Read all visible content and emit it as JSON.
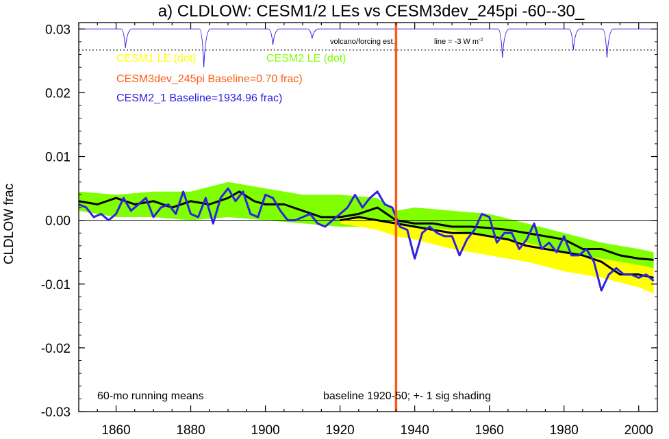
{
  "chart_data": {
    "type": "line",
    "title": "a) CLDLOW: CESM1/2 LEs vs CESM3dev_245pi -60--30_",
    "ylabel": "CLDLOW frac",
    "xlim": [
      1850,
      2005
    ],
    "ylim": [
      -0.03,
      0.031
    ],
    "x_ticks": [
      1860,
      1880,
      1900,
      1920,
      1940,
      1960,
      1980,
      2000
    ],
    "y_ticks": [
      {
        "value": 0.03,
        "label": "0.03"
      },
      {
        "value": 0.02,
        "label": "0.02"
      },
      {
        "value": 0.01,
        "label": "0.01"
      },
      {
        "value": 0.0,
        "label": "0.00"
      },
      {
        "value": -0.01,
        "label": "-0.01"
      },
      {
        "value": -0.02,
        "label": "-0.02"
      },
      {
        "value": -0.03,
        "label": "-0.03"
      }
    ],
    "legend": [
      {
        "text": "CESM1 LE (dot)",
        "color": "#ffff00"
      },
      {
        "text": "CESM2 LE (dot)",
        "color": "#7fff00"
      },
      {
        "text": "CESM3dev_245pi Baseline=0.70 frac)",
        "color": "#ff5a14"
      },
      {
        "text": "CESM2_1 Baseline=1934.96 frac)",
        "color": "#3020e0"
      }
    ],
    "annotations": {
      "volcano": "volcano/forcing est.",
      "line_note": "line = -3 W m",
      "line_note_sup": "-2",
      "running_mean": "60-mo running means",
      "baseline": "baseline 1920-50; +- 1 sig shading"
    },
    "colors": {
      "cesm1_band": "#ffff00",
      "cesm2_band": "#7fff00",
      "ensemble_mean": "#000000",
      "cesm2_1": "#3020e0",
      "cesm3dev": "#ff5a14",
      "volcano": "#3020e0"
    },
    "cesm3dev_line_year": 1935,
    "volcano_reference_line": 0.0267,
    "volcano_dips": [
      {
        "year": 1862.5,
        "depth": 0.003
      },
      {
        "year": 1883.5,
        "depth": 0.006
      },
      {
        "year": 1902,
        "depth": 0.0025
      },
      {
        "year": 1912.5,
        "depth": 0.0015
      },
      {
        "year": 1963.5,
        "depth": 0.0045
      },
      {
        "year": 1982.5,
        "depth": 0.0033
      },
      {
        "year": 1991.5,
        "depth": 0.0045
      }
    ],
    "series": [
      {
        "name": "CESM2 LE (dot)",
        "kind": "band",
        "x": [
          1850,
          1860,
          1870,
          1880,
          1890,
          1900,
          1910,
          1920,
          1930,
          1935,
          1940,
          1950,
          1960,
          1970,
          1980,
          1990,
          2000,
          2004
        ],
        "upper": [
          0.0045,
          0.004,
          0.0045,
          0.0045,
          0.006,
          0.005,
          0.004,
          0.004,
          0.0035,
          0.0015,
          0.002,
          0.0015,
          0.001,
          -0.0005,
          -0.002,
          -0.0035,
          -0.0045,
          -0.005
        ],
        "lower": [
          0.0015,
          0.0005,
          0.0005,
          0.0,
          0.0005,
          0.0,
          -0.0005,
          -0.001,
          -0.001,
          -0.0025,
          -0.002,
          -0.002,
          -0.003,
          -0.0045,
          -0.0055,
          -0.0065,
          -0.0075,
          -0.008
        ]
      },
      {
        "name": "CESM1 LE (dot)",
        "kind": "band",
        "x": [
          1920,
          1930,
          1935,
          1940,
          1950,
          1960,
          1970,
          1980,
          1990,
          2000,
          2004
        ],
        "upper": [
          0.0005,
          0.0,
          -0.0005,
          -0.001,
          -0.0015,
          -0.0025,
          -0.0035,
          -0.005,
          -0.006,
          -0.007,
          -0.0075
        ],
        "lower": [
          -0.0005,
          -0.0015,
          -0.0025,
          -0.003,
          -0.0045,
          -0.0055,
          -0.0065,
          -0.008,
          -0.009,
          -0.0105,
          -0.0115
        ]
      },
      {
        "name": "CESM2 LE mean",
        "kind": "line",
        "x": [
          1850,
          1855,
          1860,
          1865,
          1870,
          1875,
          1880,
          1885,
          1890,
          1893,
          1897,
          1900,
          1905,
          1910,
          1915,
          1920,
          1925,
          1930,
          1935,
          1940,
          1945,
          1950,
          1955,
          1960,
          1965,
          1970,
          1975,
          1980,
          1985,
          1990,
          1995,
          2000,
          2004
        ],
        "y": [
          0.003,
          0.0025,
          0.0035,
          0.0025,
          0.003,
          0.002,
          0.003,
          0.0025,
          0.0035,
          0.0045,
          0.003,
          0.0025,
          0.0025,
          0.0015,
          0.0005,
          0.0005,
          0.001,
          0.002,
          0.0,
          -0.0005,
          -0.0005,
          -0.001,
          -0.001,
          -0.0012,
          -0.0015,
          -0.002,
          -0.0025,
          -0.003,
          -0.0045,
          -0.0045,
          -0.0055,
          -0.006,
          -0.0062
        ]
      },
      {
        "name": "CESM1 LE mean",
        "kind": "line",
        "x": [
          1920,
          1925,
          1930,
          1935,
          1940,
          1945,
          1950,
          1955,
          1960,
          1965,
          1970,
          1975,
          1980,
          1985,
          1990,
          1995,
          2000,
          2004
        ],
        "y": [
          0.0,
          0.0005,
          0.0,
          -0.0005,
          -0.001,
          -0.0015,
          -0.002,
          -0.002,
          -0.0025,
          -0.003,
          -0.004,
          -0.0045,
          -0.005,
          -0.0055,
          -0.0065,
          -0.0085,
          -0.0085,
          -0.009
        ]
      },
      {
        "name": "CESM2_1 Baseline=1934.96 frac)",
        "kind": "line",
        "x": [
          1850,
          1852,
          1854,
          1856,
          1858,
          1860,
          1862,
          1864,
          1866,
          1868,
          1870,
          1872,
          1874,
          1876,
          1878,
          1880,
          1882,
          1884,
          1886,
          1888,
          1890,
          1892,
          1894,
          1896,
          1898,
          1900,
          1902,
          1904,
          1906,
          1908,
          1910,
          1912,
          1914,
          1916,
          1918,
          1920,
          1922,
          1924,
          1926,
          1928,
          1930,
          1932,
          1934,
          1936,
          1938,
          1940,
          1942,
          1944,
          1946,
          1948,
          1950,
          1952,
          1954,
          1956,
          1958,
          1960,
          1962,
          1964,
          1966,
          1968,
          1970,
          1972,
          1974,
          1976,
          1978,
          1980,
          1982,
          1984,
          1986,
          1988,
          1990,
          1992,
          1994,
          1996,
          1998,
          2000,
          2002,
          2004
        ],
        "y": [
          0.0025,
          0.002,
          0.0005,
          0.001,
          0.0,
          0.001,
          0.0035,
          0.0015,
          0.0025,
          0.0035,
          0.0005,
          0.002,
          0.0025,
          0.001,
          0.0045,
          0.001,
          0.0005,
          0.0035,
          -0.0005,
          0.0035,
          0.005,
          0.003,
          0.0045,
          0.001,
          0.0005,
          0.004,
          0.0035,
          0.0015,
          0.0,
          0.0,
          0.0005,
          0.001,
          -0.0005,
          -0.001,
          0.0,
          0.001,
          0.002,
          0.004,
          0.002,
          0.0035,
          0.0045,
          0.0025,
          0.002,
          -0.001,
          -0.0015,
          -0.006,
          -0.002,
          -0.001,
          -0.002,
          -0.0025,
          -0.0025,
          -0.0055,
          -0.003,
          -0.0015,
          0.001,
          0.0005,
          -0.0035,
          -0.002,
          -0.002,
          -0.0045,
          -0.003,
          -0.0005,
          -0.0045,
          -0.0035,
          -0.005,
          -0.0025,
          -0.0055,
          -0.0055,
          -0.0045,
          -0.0065,
          -0.011,
          -0.0085,
          -0.0075,
          -0.0085,
          -0.0085,
          -0.009,
          -0.0085,
          -0.0095
        ]
      }
    ]
  }
}
